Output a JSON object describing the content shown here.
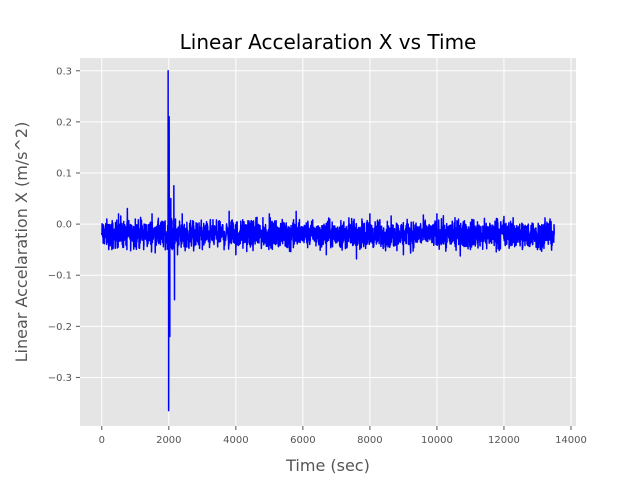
{
  "chart_data": {
    "type": "line",
    "title": "Linear Accelaration X vs Time",
    "xlabel": "Time (sec)",
    "ylabel": "Linear Accelaration X (m/s^2)",
    "xlim": [
      -650,
      14150
    ],
    "ylim": [
      -0.395,
      0.325
    ],
    "grid": true,
    "background": "#e5e5e5",
    "grid_color": "#ffffff",
    "x_ticks": [
      0,
      2000,
      4000,
      6000,
      8000,
      10000,
      12000,
      14000
    ],
    "x_tick_labels": [
      "0",
      "2000",
      "4000",
      "6000",
      "8000",
      "10000",
      "12000",
      "14000"
    ],
    "y_ticks": [
      -0.3,
      -0.2,
      -0.1,
      0.0,
      0.1,
      0.2,
      0.3
    ],
    "y_tick_labels": [
      "−0.3",
      "−0.2",
      "−0.1",
      "0.0",
      "0.1",
      "0.2",
      "0.3"
    ],
    "series": [
      {
        "color": "#0000ff",
        "x_range": [
          0,
          13500
        ],
        "baseline": -0.02,
        "band": [
          -0.06,
          0.02
        ],
        "points": [
          [
            0,
            -0.02
          ],
          [
            150,
            0.01
          ],
          [
            300,
            -0.05
          ],
          [
            500,
            0.02
          ],
          [
            750,
            -0.05
          ],
          [
            1000,
            0.01
          ],
          [
            1250,
            -0.05
          ],
          [
            1500,
            0.02
          ],
          [
            1750,
            -0.04
          ],
          [
            1950,
            -0.02
          ],
          [
            1980,
            0.3
          ],
          [
            1995,
            -0.365
          ],
          [
            2010,
            0.21
          ],
          [
            2030,
            -0.22
          ],
          [
            2060,
            0.05
          ],
          [
            2100,
            -0.05
          ],
          [
            2150,
            0.075
          ],
          [
            2170,
            -0.148
          ],
          [
            2200,
            0.01
          ],
          [
            2260,
            -0.06
          ],
          [
            2400,
            0.02
          ],
          [
            3000,
            -0.05
          ],
          [
            3800,
            0.025
          ],
          [
            4000,
            -0.06
          ],
          [
            5000,
            0.02
          ],
          [
            5800,
            0.025
          ],
          [
            6700,
            -0.06
          ],
          [
            7600,
            -0.068
          ],
          [
            8000,
            0.02
          ],
          [
            9000,
            -0.06
          ],
          [
            10000,
            0.02
          ],
          [
            11000,
            -0.05
          ],
          [
            12000,
            0.015
          ],
          [
            13000,
            -0.05
          ],
          [
            13500,
            -0.02
          ]
        ]
      }
    ]
  }
}
